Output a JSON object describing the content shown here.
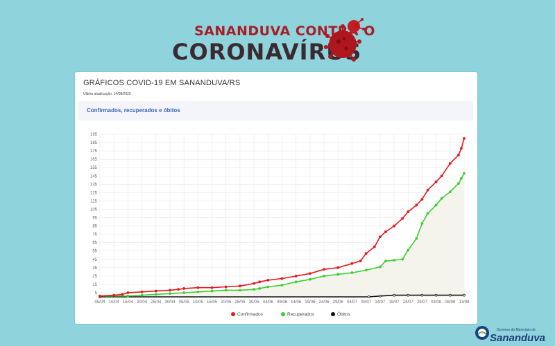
{
  "banner": {
    "line1": "SANANDUVA CONTRA O",
    "line2": "CORONAVÍRUS"
  },
  "card": {
    "title": "GRÁFICOS COVID-19 EM SANANDUVA/RS",
    "updated": "Última atualização: 14/08/2020",
    "subtitle": "Confirmados, recuperados e óbitos"
  },
  "logo": {
    "small": "Governo do Município de",
    "main": "Sananduva"
  },
  "colors": {
    "confirmados": "#e8161c",
    "recuperados": "#3bcf2f",
    "obitos": "#111111",
    "recuperados_fill": "#f4f4ec",
    "confirmados_fill": "#ffffff"
  },
  "chart_data": {
    "type": "line",
    "ylim": [
      0,
      195
    ],
    "yticks": [
      5,
      15,
      25,
      35,
      45,
      55,
      65,
      75,
      85,
      95,
      105,
      115,
      125,
      135,
      145,
      155,
      165,
      175,
      185,
      195
    ],
    "xticks": [
      "05/04",
      "10/04",
      "15/04",
      "20/04",
      "25/04",
      "30/04",
      "05/05",
      "10/05",
      "15/05",
      "20/05",
      "25/05",
      "30/05",
      "04/06",
      "09/06",
      "14/06",
      "19/06",
      "24/06",
      "29/06",
      "04/07",
      "09/07",
      "14/07",
      "19/07",
      "24/07",
      "29/07",
      "03/08",
      "08/08",
      "13/08"
    ],
    "legend_position": "bottom",
    "grid": true,
    "series": [
      {
        "name": "Confirmados",
        "points": [
          [
            "05/04",
            1
          ],
          [
            "10/04",
            2
          ],
          [
            "13/04",
            3
          ],
          [
            "15/04",
            5
          ],
          [
            "20/04",
            6
          ],
          [
            "25/04",
            7
          ],
          [
            "30/04",
            8
          ],
          [
            "03/05",
            9
          ],
          [
            "05/05",
            10
          ],
          [
            "10/05",
            11
          ],
          [
            "15/05",
            11
          ],
          [
            "20/05",
            12
          ],
          [
            "25/05",
            13
          ],
          [
            "30/05",
            16
          ],
          [
            "01/06",
            18
          ],
          [
            "04/06",
            20
          ],
          [
            "09/06",
            22
          ],
          [
            "14/06",
            25
          ],
          [
            "19/06",
            28
          ],
          [
            "24/06",
            33
          ],
          [
            "29/06",
            35
          ],
          [
            "04/07",
            40
          ],
          [
            "07/07",
            43
          ],
          [
            "09/07",
            52
          ],
          [
            "12/07",
            60
          ],
          [
            "14/07",
            72
          ],
          [
            "16/07",
            78
          ],
          [
            "19/07",
            85
          ],
          [
            "22/07",
            94
          ],
          [
            "24/07",
            102
          ],
          [
            "27/07",
            110
          ],
          [
            "29/07",
            117
          ],
          [
            "31/07",
            128
          ],
          [
            "03/08",
            138
          ],
          [
            "05/08",
            145
          ],
          [
            "08/08",
            160
          ],
          [
            "11/08",
            170
          ],
          [
            "12/08",
            178
          ],
          [
            "13/08",
            190
          ]
        ]
      },
      {
        "name": "Recuperados",
        "points": [
          [
            "05/04",
            1
          ],
          [
            "15/04",
            1
          ],
          [
            "20/04",
            2
          ],
          [
            "25/04",
            3
          ],
          [
            "30/04",
            4
          ],
          [
            "05/05",
            5
          ],
          [
            "10/05",
            6
          ],
          [
            "15/05",
            7
          ],
          [
            "20/05",
            8
          ],
          [
            "25/05",
            8
          ],
          [
            "30/05",
            9
          ],
          [
            "01/06",
            10
          ],
          [
            "04/06",
            12
          ],
          [
            "09/06",
            14
          ],
          [
            "14/06",
            18
          ],
          [
            "19/06",
            21
          ],
          [
            "24/06",
            25
          ],
          [
            "29/06",
            27
          ],
          [
            "04/07",
            29
          ],
          [
            "09/07",
            32
          ],
          [
            "14/07",
            36
          ],
          [
            "16/07",
            43
          ],
          [
            "19/07",
            44
          ],
          [
            "22/07",
            45
          ],
          [
            "24/07",
            56
          ],
          [
            "27/07",
            70
          ],
          [
            "29/07",
            88
          ],
          [
            "31/07",
            100
          ],
          [
            "03/08",
            110
          ],
          [
            "05/08",
            118
          ],
          [
            "08/08",
            126
          ],
          [
            "11/08",
            136
          ],
          [
            "12/08",
            142
          ],
          [
            "13/08",
            148
          ]
        ]
      },
      {
        "name": "Óbitos",
        "points": [
          [
            "05/04",
            0
          ],
          [
            "10/07",
            0
          ],
          [
            "14/07",
            1
          ],
          [
            "19/07",
            2
          ],
          [
            "24/07",
            2
          ],
          [
            "29/07",
            2
          ],
          [
            "03/08",
            2
          ],
          [
            "08/08",
            2
          ],
          [
            "13/08",
            2
          ]
        ]
      }
    ]
  }
}
